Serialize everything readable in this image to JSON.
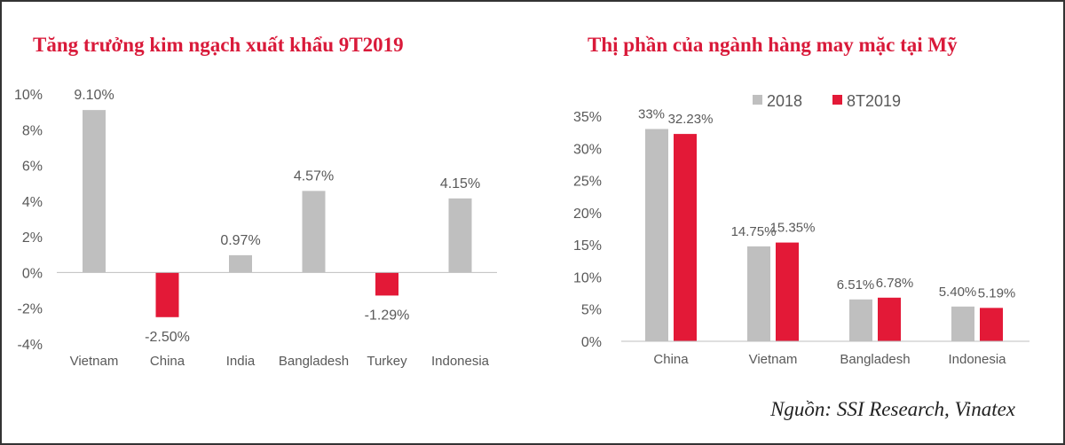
{
  "chart_data": [
    {
      "type": "bar",
      "title": "Tăng trưởng kim ngạch xuất khẩu 9T2019",
      "categories": [
        "Vietnam",
        "China",
        "India",
        "Bangladesh",
        "Turkey",
        "Indonesia"
      ],
      "values": [
        9.1,
        -2.5,
        0.97,
        4.57,
        -1.29,
        4.15
      ],
      "data_labels": [
        "9.10%",
        "-2.50%",
        "0.97%",
        "4.57%",
        "-1.29%",
        "4.15%"
      ],
      "ylim": [
        -4,
        10
      ],
      "yticks": [
        10,
        8,
        6,
        4,
        2,
        0,
        -2,
        -4
      ],
      "ytick_labels": [
        "10%",
        "8%",
        "6%",
        "4%",
        "2%",
        "0%",
        "-2%",
        "-4%"
      ],
      "colors": {
        "positive": "#bfbfbf",
        "negative": "#e31937"
      },
      "grid": false,
      "legend": "none"
    },
    {
      "type": "bar",
      "title": "Thị phần của ngành hàng may mặc tại Mỹ",
      "categories": [
        "China",
        "Vietnam",
        "Bangladesh",
        "Indonesia"
      ],
      "series": [
        {
          "name": "2018",
          "values": [
            33,
            14.75,
            6.51,
            5.4
          ],
          "labels": [
            "33%",
            "14.75%",
            "6.51%",
            "5.40%"
          ],
          "color": "#bfbfbf"
        },
        {
          "name": "8T2019",
          "values": [
            32.23,
            15.35,
            6.78,
            5.19
          ],
          "labels": [
            "32.23%",
            "15.35%",
            "6.78%",
            "5.19%"
          ],
          "color": "#e31937"
        }
      ],
      "ylim": [
        0,
        35
      ],
      "yticks": [
        35,
        30,
        25,
        20,
        15,
        10,
        5,
        0
      ],
      "ytick_labels": [
        "35%",
        "30%",
        "25%",
        "20%",
        "15%",
        "10%",
        "5%",
        "0%"
      ],
      "grid": false,
      "legend": "top"
    }
  ],
  "source": "Nguồn: SSI Research, Vinatex"
}
